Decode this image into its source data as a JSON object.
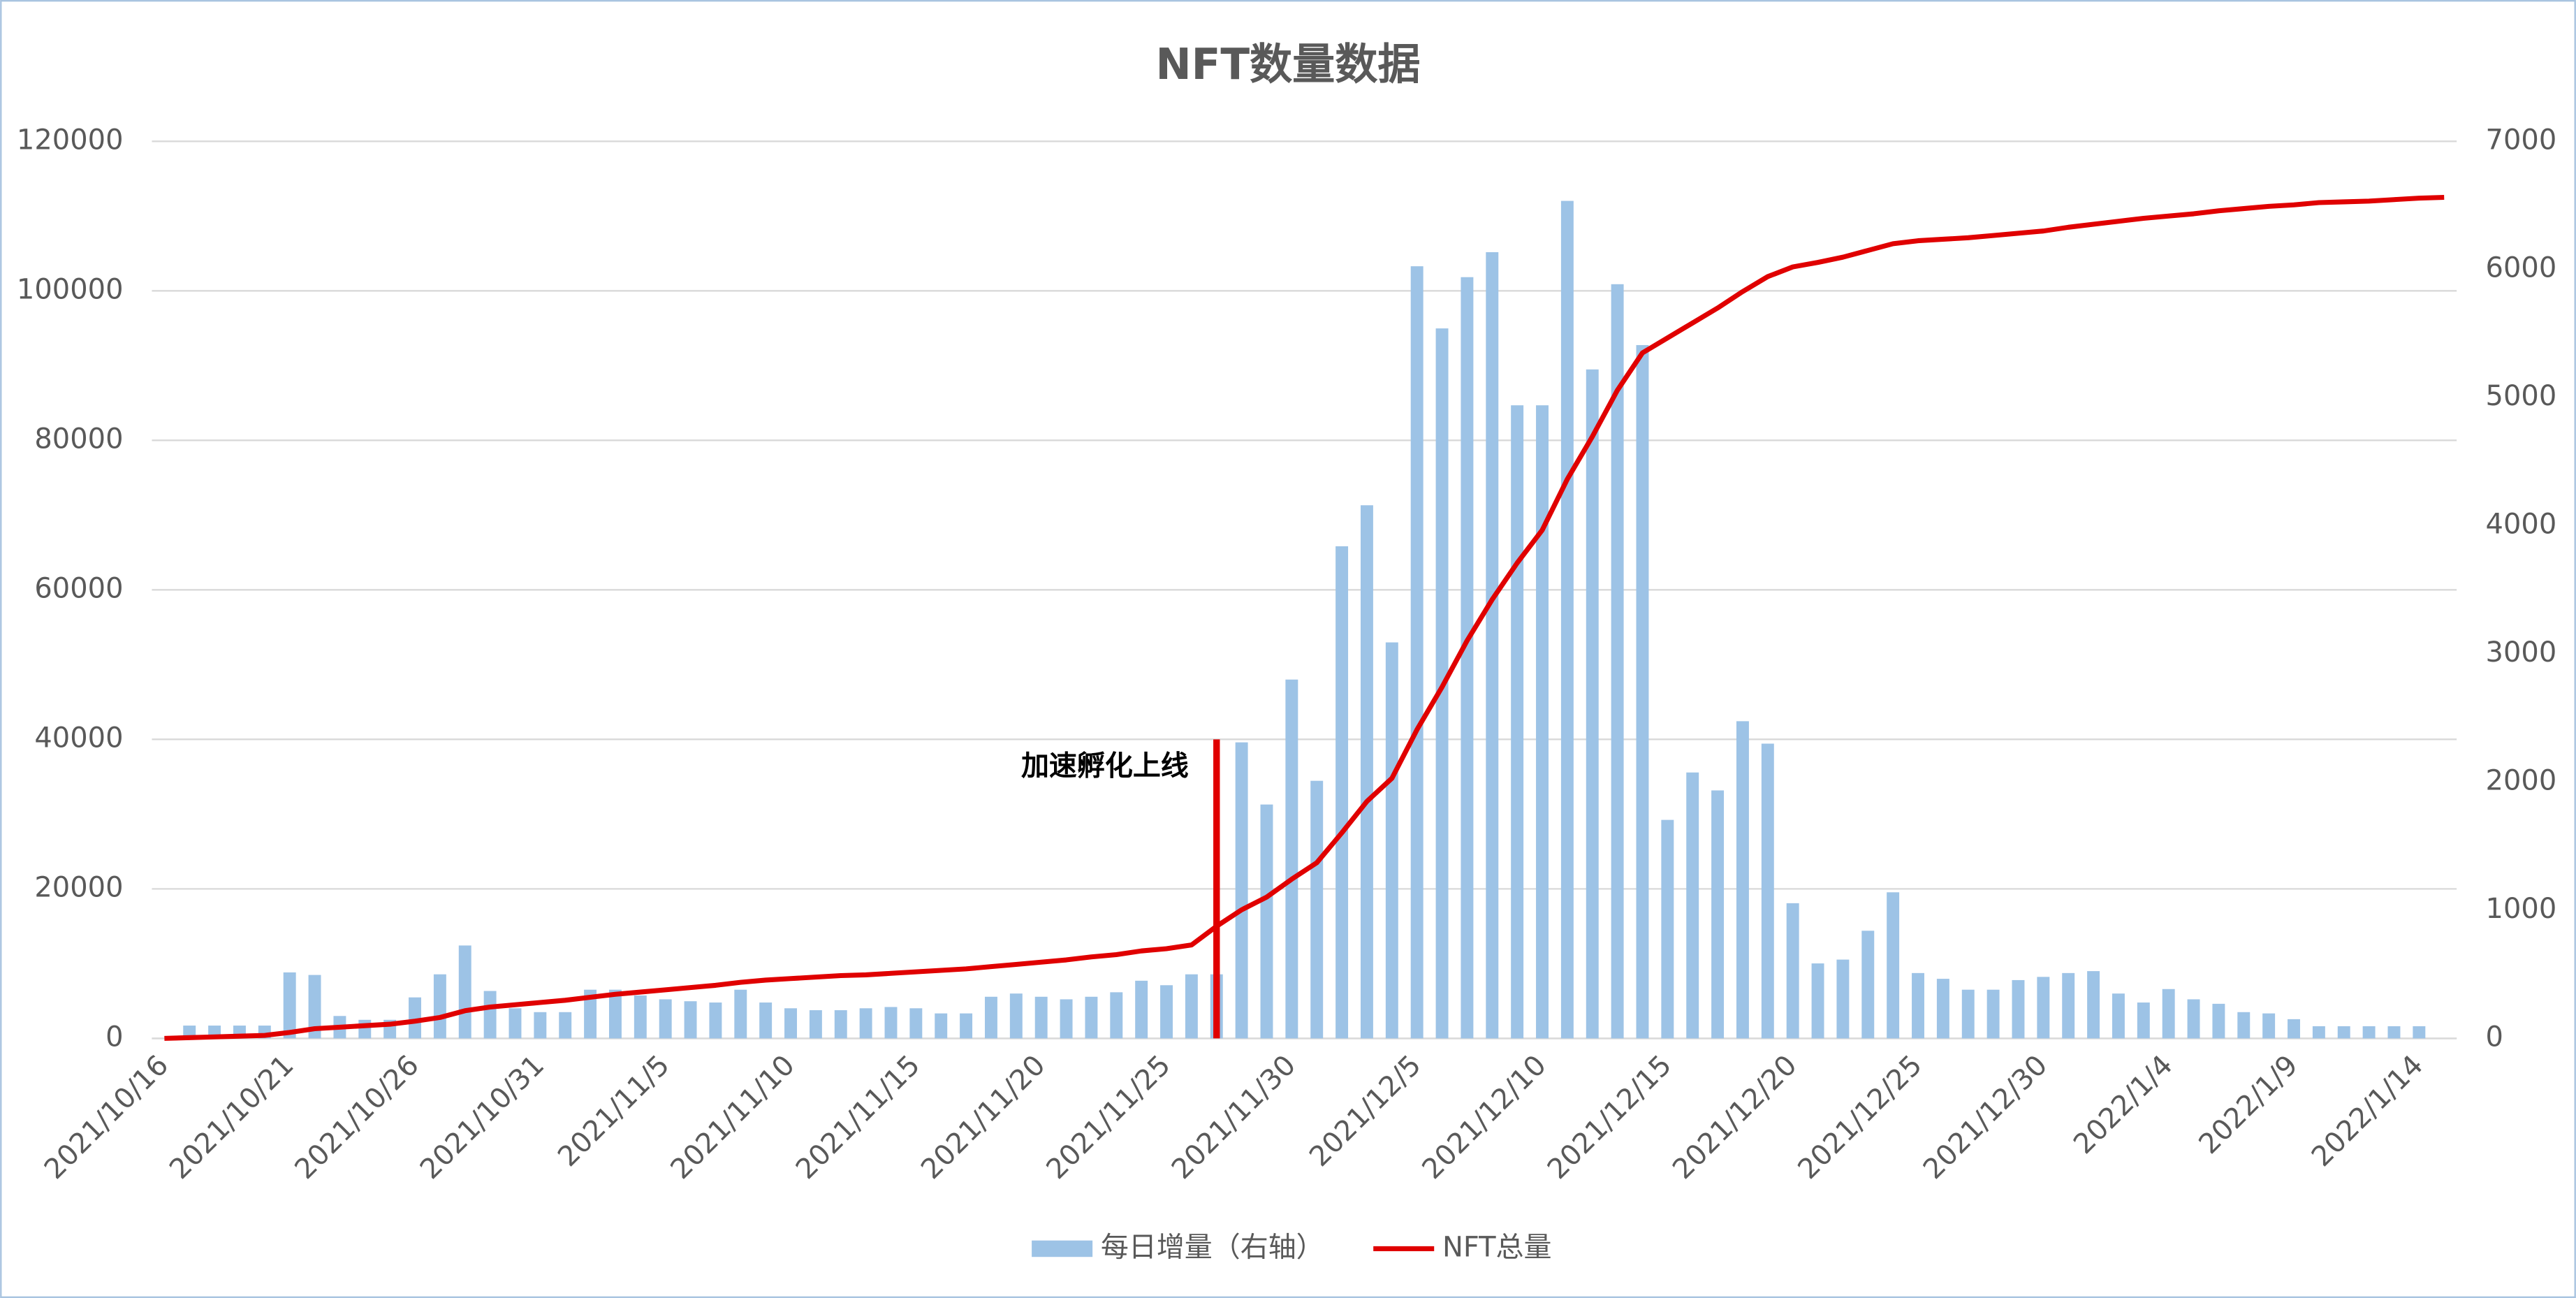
{
  "chart_data": {
    "type": "combo",
    "title": "NFT数量数据",
    "categories": [
      "2021/10/16",
      null,
      null,
      null,
      null,
      "2021/10/21",
      null,
      null,
      null,
      null,
      "2021/10/26",
      null,
      null,
      null,
      null,
      "2021/10/31",
      null,
      null,
      null,
      null,
      "2021/11/5",
      null,
      null,
      null,
      null,
      "2021/11/10",
      null,
      null,
      null,
      null,
      "2021/11/15",
      null,
      null,
      null,
      null,
      "2021/11/20",
      null,
      null,
      null,
      null,
      "2021/11/25",
      null,
      null,
      null,
      null,
      "2021/11/30",
      null,
      null,
      null,
      null,
      "2021/12/5",
      null,
      null,
      null,
      null,
      "2021/12/10",
      null,
      null,
      null,
      null,
      "2021/12/15",
      null,
      null,
      null,
      null,
      "2021/12/20",
      null,
      null,
      null,
      null,
      "2021/12/25",
      null,
      null,
      null,
      null,
      "2021/12/30",
      null,
      null,
      null,
      null,
      "2022/1/4",
      null,
      null,
      null,
      null,
      "2022/1/9",
      null,
      null,
      null,
      null,
      "2022/1/14",
      null
    ],
    "series": [
      {
        "name": "每日增量（右轴）",
        "type": "bar",
        "axis": "y2",
        "color": "#9dc3e6",
        "values": [
          0,
          100,
          100,
          100,
          100,
          515,
          495,
          175,
          145,
          145,
          320,
          500,
          725,
          370,
          235,
          205,
          205,
          380,
          380,
          335,
          305,
          290,
          280,
          380,
          280,
          235,
          220,
          220,
          235,
          245,
          235,
          195,
          195,
          325,
          350,
          325,
          305,
          325,
          360,
          450,
          415,
          500,
          500,
          2310,
          1825,
          2800,
          2010,
          3840,
          4160,
          3090,
          6025,
          5540,
          5940,
          6135,
          4940,
          4940,
          6535,
          5220,
          5885,
          5410,
          1705,
          2075,
          1935,
          2475,
          2300,
          1055,
          585,
          615,
          840,
          1140,
          510,
          465,
          380,
          380,
          455,
          480,
          510,
          525,
          350,
          280,
          385,
          305,
          270,
          205,
          195,
          150,
          95,
          95,
          95,
          95,
          95,
          null
        ]
      },
      {
        "name": "NFT总量",
        "type": "line",
        "color": "#e00000",
        "values": [
          0,
          100,
          200,
          300,
          400,
          800,
          1300,
          1500,
          1700,
          1900,
          2300,
          2800,
          3700,
          4200,
          4500,
          4800,
          5100,
          5500,
          5900,
          6200,
          6500,
          6800,
          7100,
          7500,
          7800,
          8000,
          8200,
          8400,
          8500,
          8700,
          8900,
          9100,
          9300,
          9600,
          9900,
          10200,
          10500,
          10900,
          11200,
          11700,
          12000,
          12500,
          15000,
          17200,
          18900,
          21300,
          23500,
          27500,
          31700,
          34800,
          41300,
          47000,
          53200,
          58700,
          63600,
          68000,
          74800,
          80500,
          86700,
          91700,
          93700,
          95700,
          97700,
          99900,
          101900,
          103200,
          103800,
          104500,
          105400,
          106300,
          106700,
          106900,
          107100,
          107400,
          107700,
          108000,
          108500,
          108900,
          109300,
          109700,
          110000,
          110300,
          110700,
          111000,
          111300,
          111500,
          111800,
          111900,
          112000,
          112200,
          112400,
          112500
        ]
      }
    ],
    "ylim": [
      0,
      120000
    ],
    "yticks": [
      0,
      20000,
      40000,
      60000,
      80000,
      100000,
      120000
    ],
    "y2lim": [
      0,
      7000
    ],
    "y2ticks": [
      0,
      1000,
      2000,
      3000,
      4000,
      5000,
      6000,
      7000
    ],
    "grid": true,
    "legend": "bottom",
    "annotation": {
      "text": "加速孵化上线",
      "value": 40000,
      "color": "#e00000"
    }
  }
}
